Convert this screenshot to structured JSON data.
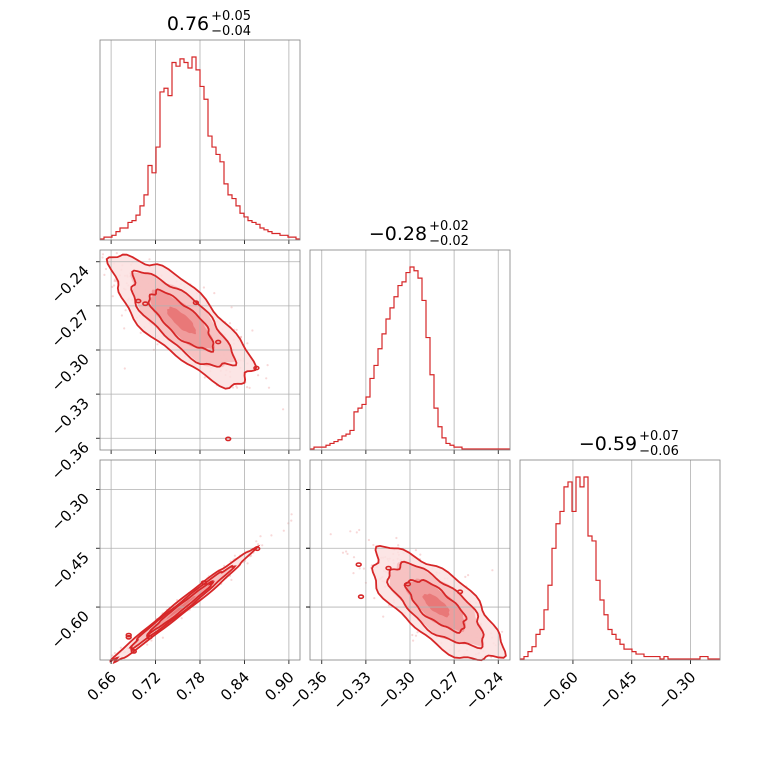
{
  "figure": {
    "accent_color": "#d62728",
    "grid_color": "#b0b0b0",
    "frame_color": "#808080"
  },
  "chart_data": {
    "type": "corner",
    "parameters": [
      {
        "title_main": "0.76",
        "title_sup": "+0.05",
        "title_sub": "−0.04",
        "range": [
          0.645,
          0.915
        ],
        "ticks": [
          0.66,
          0.72,
          0.78,
          0.84,
          0.9
        ],
        "tick_labels": [
          "0.66",
          "0.72",
          "0.78",
          "0.84",
          "0.90"
        ]
      },
      {
        "title_main": "−0.28",
        "title_sup": "+0.02",
        "title_sub": "−0.02",
        "range": [
          -0.368,
          -0.232
        ],
        "ticks": [
          -0.36,
          -0.33,
          -0.3,
          -0.27,
          -0.24
        ],
        "tick_labels": [
          "−0.36",
          "−0.33",
          "−0.30",
          "−0.27",
          "−0.24"
        ]
      },
      {
        "title_main": "−0.59",
        "title_sup": "+0.07",
        "title_sub": "−0.06",
        "range": [
          -0.735,
          -0.225
        ],
        "ticks": [
          -0.6,
          -0.45,
          -0.3
        ],
        "tick_labels": [
          "−0.60",
          "−0.45",
          "−0.30"
        ]
      }
    ],
    "histograms": [
      {
        "param": 0,
        "bin_start": 0.645,
        "bin_width": 0.0054,
        "counts": [
          0,
          1,
          1,
          2,
          4,
          6,
          6,
          9,
          10,
          13,
          18,
          24,
          40,
          36,
          50,
          80,
          82,
          78,
          96,
          94,
          98,
          96,
          93,
          99,
          92,
          83,
          76,
          56,
          50,
          46,
          42,
          30,
          24,
          22,
          18,
          14,
          12,
          10,
          9,
          8,
          6,
          5,
          4,
          3,
          3,
          2,
          2,
          1,
          1,
          0
        ]
      },
      {
        "param": 1,
        "bin_start": -0.368,
        "bin_width": 0.00272,
        "counts": [
          0,
          1,
          1,
          1,
          2,
          3,
          4,
          5,
          7,
          8,
          10,
          20,
          22,
          24,
          28,
          38,
          45,
          54,
          62,
          70,
          76,
          82,
          88,
          90,
          95,
          98,
          96,
          92,
          80,
          60,
          40,
          22,
          12,
          6,
          3,
          2,
          1,
          1,
          0,
          0,
          0,
          0,
          0,
          0,
          0,
          0,
          0,
          0,
          0,
          0
        ]
      },
      {
        "param": 2,
        "bin_start": -0.735,
        "bin_width": 0.0102,
        "counts": [
          0,
          1,
          3,
          5,
          10,
          12,
          20,
          30,
          45,
          55,
          60,
          70,
          72,
          60,
          74,
          70,
          74,
          50,
          48,
          32,
          24,
          18,
          12,
          10,
          8,
          6,
          4,
          4,
          3,
          2,
          2,
          1,
          1,
          1,
          1,
          0,
          1,
          0,
          0,
          0,
          0,
          0,
          0,
          0,
          0,
          1,
          1,
          0,
          0,
          0
        ]
      }
    ],
    "pairs": [
      {
        "x_param": 0,
        "y_param": 1,
        "center": [
          0.755,
          -0.28
        ],
        "std": [
          0.043,
          0.02
        ],
        "correlation": -0.78,
        "contour_levels": 3
      },
      {
        "x_param": 0,
        "y_param": 2,
        "center": [
          0.755,
          -0.6
        ],
        "std": [
          0.043,
          0.065
        ],
        "correlation": 0.99,
        "contour_levels": 3
      },
      {
        "x_param": 1,
        "y_param": 2,
        "center": [
          -0.282,
          -0.595
        ],
        "std": [
          0.02,
          0.065
        ],
        "correlation": -0.72,
        "contour_levels": 3
      }
    ],
    "grid": true
  }
}
